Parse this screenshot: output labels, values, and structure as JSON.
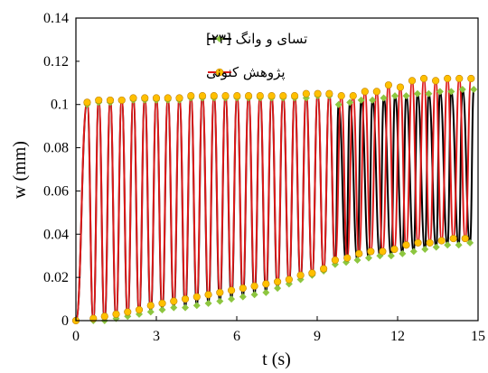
{
  "chart_data": {
    "type": "line",
    "title": "",
    "xlabel": "t (s)",
    "ylabel": "w (mm)",
    "xlim": [
      0,
      15
    ],
    "ylim": [
      0,
      0.14
    ],
    "xticks": [
      0,
      3,
      6,
      9,
      12,
      15
    ],
    "xtick_labels": [
      "0",
      "3",
      "6",
      "9",
      "12",
      "15"
    ],
    "yticks": [
      0,
      0.02,
      0.04,
      0.06,
      0.08,
      0.1,
      0.12,
      0.14
    ],
    "ytick_labels": [
      "0",
      "0.02",
      "0.04",
      "0.06",
      "0.08",
      "0.1",
      "0.12",
      "0.14"
    ],
    "grid": false,
    "legend_position": "top-left",
    "series": [
      {
        "name": "تسای و وانگ [۲۳]",
        "color": "#000000",
        "marker_color": "#8dc63f",
        "marker": "diamond",
        "peaks": [
          [
            0.42,
            0.1
          ],
          [
            0.85,
            0.101
          ],
          [
            1.28,
            0.101
          ],
          [
            1.71,
            0.102
          ],
          [
            2.14,
            0.102
          ],
          [
            2.57,
            0.102
          ],
          [
            3.0,
            0.102
          ],
          [
            3.43,
            0.102
          ],
          [
            3.86,
            0.102
          ],
          [
            4.29,
            0.103
          ],
          [
            4.72,
            0.103
          ],
          [
            5.15,
            0.103
          ],
          [
            5.58,
            0.103
          ],
          [
            6.01,
            0.103
          ],
          [
            6.44,
            0.103
          ],
          [
            6.87,
            0.103
          ],
          [
            7.3,
            0.103
          ],
          [
            7.73,
            0.103
          ],
          [
            8.16,
            0.103
          ],
          [
            8.59,
            0.103
          ],
          [
            9.02,
            0.104
          ],
          [
            9.45,
            0.104
          ],
          [
            9.8,
            0.1
          ],
          [
            10.22,
            0.101
          ],
          [
            10.64,
            0.102
          ],
          [
            11.06,
            0.102
          ],
          [
            11.48,
            0.103
          ],
          [
            11.9,
            0.104
          ],
          [
            12.32,
            0.104
          ],
          [
            12.74,
            0.105
          ],
          [
            13.16,
            0.105
          ],
          [
            13.58,
            0.106
          ],
          [
            14.0,
            0.106
          ],
          [
            14.42,
            0.107
          ],
          [
            14.84,
            0.107
          ]
        ],
        "valleys": [
          [
            0.0,
            0.0
          ],
          [
            0.65,
            0.0
          ],
          [
            1.07,
            0.0
          ],
          [
            1.5,
            0.001
          ],
          [
            1.93,
            0.002
          ],
          [
            2.36,
            0.003
          ],
          [
            2.79,
            0.004
          ],
          [
            3.22,
            0.005
          ],
          [
            3.65,
            0.006
          ],
          [
            4.08,
            0.006
          ],
          [
            4.51,
            0.007
          ],
          [
            4.94,
            0.008
          ],
          [
            5.37,
            0.009
          ],
          [
            5.8,
            0.01
          ],
          [
            6.23,
            0.011
          ],
          [
            6.66,
            0.012
          ],
          [
            7.09,
            0.013
          ],
          [
            7.52,
            0.015
          ],
          [
            7.95,
            0.017
          ],
          [
            8.38,
            0.019
          ],
          [
            8.81,
            0.021
          ],
          [
            9.24,
            0.023
          ],
          [
            9.67,
            0.026
          ],
          [
            10.08,
            0.027
          ],
          [
            10.5,
            0.028
          ],
          [
            10.92,
            0.029
          ],
          [
            11.34,
            0.03
          ],
          [
            11.76,
            0.03
          ],
          [
            12.18,
            0.031
          ],
          [
            12.6,
            0.032
          ],
          [
            13.02,
            0.033
          ],
          [
            13.44,
            0.034
          ],
          [
            13.86,
            0.035
          ],
          [
            14.28,
            0.035
          ],
          [
            14.7,
            0.036
          ]
        ]
      },
      {
        "name": "پژوهش کنونی",
        "color": "#dd1a1a",
        "marker_color": "#ffc000",
        "marker": "circle",
        "peaks": [
          [
            0.42,
            0.101
          ],
          [
            0.85,
            0.102
          ],
          [
            1.28,
            0.102
          ],
          [
            1.71,
            0.102
          ],
          [
            2.14,
            0.103
          ],
          [
            2.57,
            0.103
          ],
          [
            3.0,
            0.103
          ],
          [
            3.43,
            0.103
          ],
          [
            3.86,
            0.103
          ],
          [
            4.29,
            0.104
          ],
          [
            4.72,
            0.104
          ],
          [
            5.15,
            0.104
          ],
          [
            5.58,
            0.104
          ],
          [
            6.01,
            0.104
          ],
          [
            6.44,
            0.104
          ],
          [
            6.87,
            0.104
          ],
          [
            7.3,
            0.104
          ],
          [
            7.73,
            0.104
          ],
          [
            8.16,
            0.104
          ],
          [
            8.59,
            0.105
          ],
          [
            9.02,
            0.105
          ],
          [
            9.45,
            0.105
          ],
          [
            9.9,
            0.104
          ],
          [
            10.34,
            0.104
          ],
          [
            10.78,
            0.106
          ],
          [
            11.22,
            0.106
          ],
          [
            11.66,
            0.109
          ],
          [
            12.1,
            0.108
          ],
          [
            12.54,
            0.111
          ],
          [
            12.98,
            0.112
          ],
          [
            13.42,
            0.111
          ],
          [
            13.86,
            0.112
          ],
          [
            14.3,
            0.112
          ],
          [
            14.74,
            0.112
          ]
        ],
        "valleys": [
          [
            0.0,
            0.0
          ],
          [
            0.65,
            0.001
          ],
          [
            1.07,
            0.002
          ],
          [
            1.5,
            0.003
          ],
          [
            1.93,
            0.004
          ],
          [
            2.36,
            0.005
          ],
          [
            2.79,
            0.007
          ],
          [
            3.22,
            0.008
          ],
          [
            3.65,
            0.009
          ],
          [
            4.08,
            0.01
          ],
          [
            4.51,
            0.011
          ],
          [
            4.94,
            0.012
          ],
          [
            5.37,
            0.013
          ],
          [
            5.8,
            0.014
          ],
          [
            6.23,
            0.015
          ],
          [
            6.66,
            0.016
          ],
          [
            7.09,
            0.017
          ],
          [
            7.52,
            0.018
          ],
          [
            7.95,
            0.019
          ],
          [
            8.38,
            0.021
          ],
          [
            8.81,
            0.022
          ],
          [
            9.24,
            0.024
          ],
          [
            9.67,
            0.028
          ],
          [
            10.12,
            0.029
          ],
          [
            10.56,
            0.031
          ],
          [
            11.0,
            0.032
          ],
          [
            11.44,
            0.032
          ],
          [
            11.88,
            0.033
          ],
          [
            12.32,
            0.035
          ],
          [
            12.76,
            0.036
          ],
          [
            13.2,
            0.036
          ],
          [
            13.64,
            0.037
          ],
          [
            14.08,
            0.038
          ],
          [
            14.52,
            0.038
          ]
        ]
      }
    ]
  }
}
